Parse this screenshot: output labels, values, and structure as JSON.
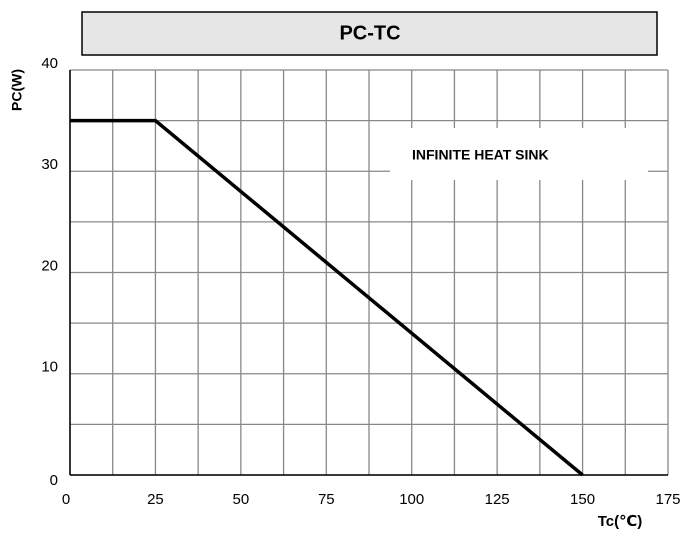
{
  "chart_data": {
    "type": "line",
    "title": "PC-TC",
    "x_label": "Tc(℃)",
    "y_label": "PC(W)",
    "annotation": "INFINITE HEAT SINK",
    "x": [
      0,
      25,
      150
    ],
    "series": [
      {
        "color": "#000000",
        "values": [
          35,
          35,
          0
        ]
      }
    ],
    "xlim": [
      0,
      175
    ],
    "xticks": [
      0,
      25,
      50,
      75,
      100,
      125,
      150,
      175
    ],
    "ylim": [
      0,
      40
    ],
    "yticks": [
      0,
      10,
      20,
      30,
      40
    ],
    "xgrid": [
      0,
      12.5,
      25,
      37.5,
      50,
      62.5,
      75,
      87.5,
      100,
      112.5,
      125,
      137.5,
      150,
      162.5,
      175
    ],
    "ygrid": [
      0,
      5,
      10,
      15,
      20,
      25,
      30,
      35,
      40
    ],
    "grid": true
  }
}
